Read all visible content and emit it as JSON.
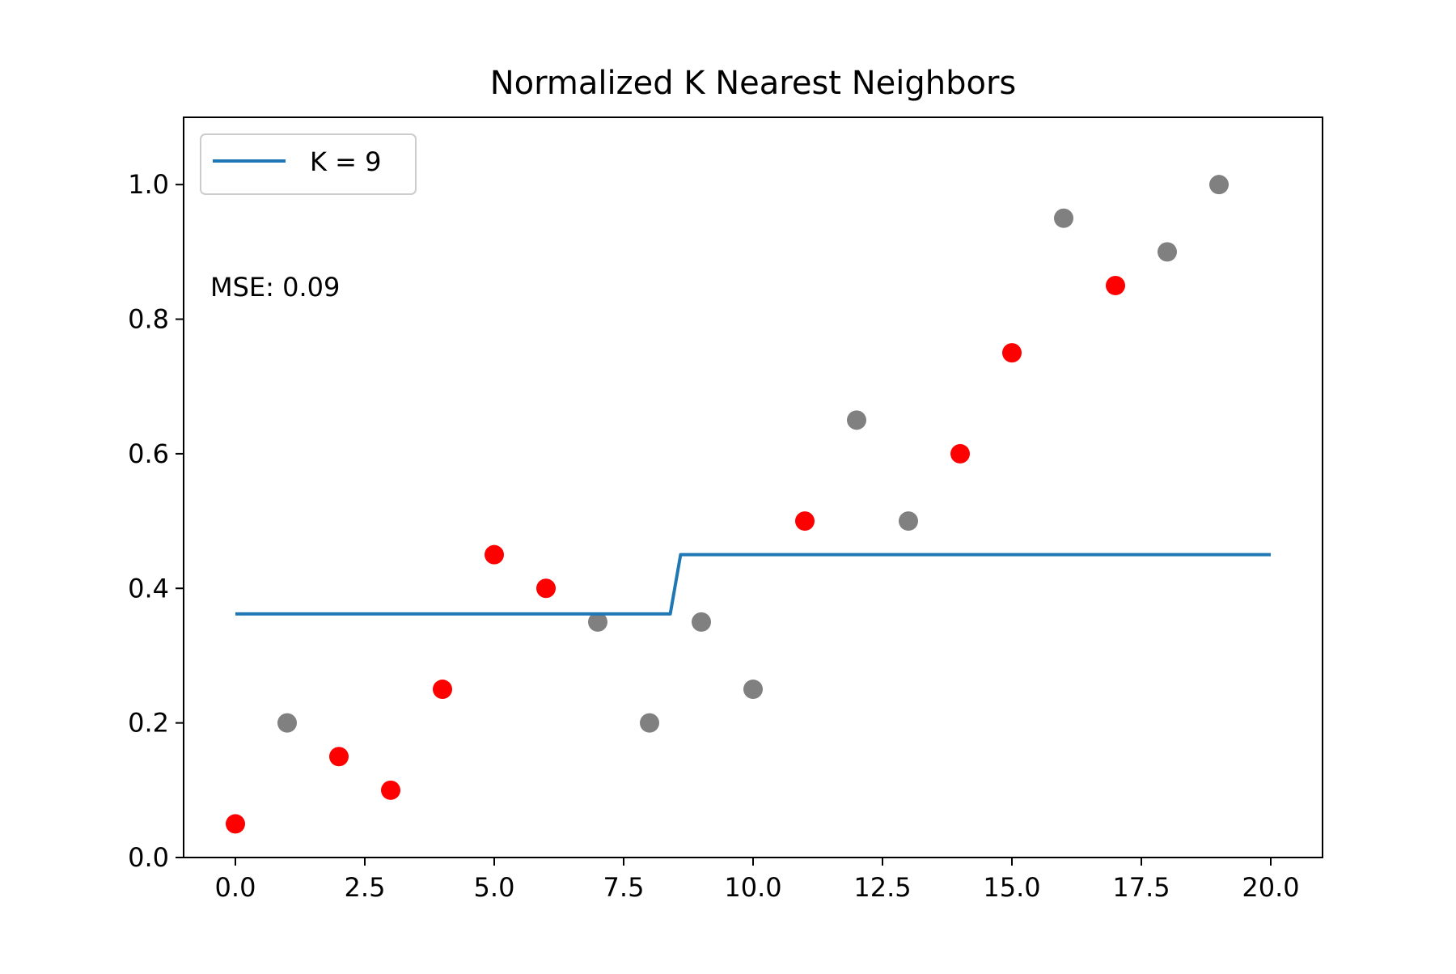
{
  "chart_data": {
    "type": "scatter",
    "title": "Normalized K Nearest Neighbors",
    "xlabel": "",
    "ylabel": "",
    "xlim": [
      -1.0,
      21.0
    ],
    "ylim": [
      0.0,
      1.1
    ],
    "xticks": [
      0.0,
      2.5,
      5.0,
      7.5,
      10.0,
      12.5,
      15.0,
      17.5,
      20.0
    ],
    "xtick_labels": [
      "0.0",
      "2.5",
      "5.0",
      "7.5",
      "10.0",
      "12.5",
      "15.0",
      "17.5",
      "20.0"
    ],
    "yticks": [
      0.0,
      0.2,
      0.4,
      0.6,
      0.8,
      1.0
    ],
    "ytick_labels": [
      "0.0",
      "0.2",
      "0.4",
      "0.6",
      "0.8",
      "1.0"
    ],
    "grid": false,
    "legend_position": "top-left",
    "annotation": "MSE: 0.09",
    "series": [
      {
        "kind": "scatter",
        "color": "#ff0000",
        "x": [
          0,
          2,
          3,
          4,
          5,
          6,
          11,
          14,
          15,
          17
        ],
        "y": [
          0.05,
          0.15,
          0.1,
          0.25,
          0.45,
          0.4,
          0.5,
          0.6,
          0.75,
          0.85
        ]
      },
      {
        "kind": "scatter",
        "color": "#808080",
        "x": [
          1,
          7,
          8,
          9,
          10,
          12,
          13,
          16,
          18,
          19
        ],
        "y": [
          0.2,
          0.35,
          0.2,
          0.35,
          0.25,
          0.65,
          0.5,
          0.95,
          0.9,
          1.0
        ]
      },
      {
        "kind": "line",
        "name": "K = 9",
        "color": "#1f77b4",
        "x": [
          0.0,
          8.4,
          8.6,
          20.0
        ],
        "y": [
          0.362,
          0.362,
          0.45,
          0.45
        ]
      }
    ]
  }
}
